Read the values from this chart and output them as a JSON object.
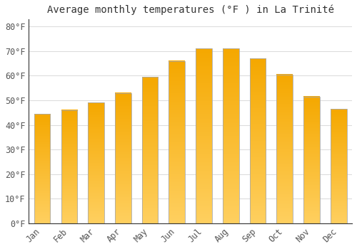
{
  "title": "Average monthly temperatures (°F ) in La Trinité",
  "months": [
    "Jan",
    "Feb",
    "Mar",
    "Apr",
    "May",
    "Jun",
    "Jul",
    "Aug",
    "Sep",
    "Oct",
    "Nov",
    "Dec"
  ],
  "values": [
    44.5,
    46.0,
    49.0,
    53.0,
    59.5,
    66.0,
    71.0,
    71.0,
    67.0,
    60.5,
    51.5,
    46.5
  ],
  "bar_color_top": "#F5A800",
  "bar_color_bottom": "#FFD060",
  "bar_edge_color": "#AAAAAA",
  "background_color": "#FFFFFF",
  "plot_bg_color": "#FFFFFF",
  "grid_color": "#DDDDDD",
  "ylim": [
    0,
    83
  ],
  "yticks": [
    0,
    10,
    20,
    30,
    40,
    50,
    60,
    70,
    80
  ],
  "title_fontsize": 10,
  "tick_fontsize": 8.5,
  "tick_color": "#555555",
  "bar_width": 0.6
}
